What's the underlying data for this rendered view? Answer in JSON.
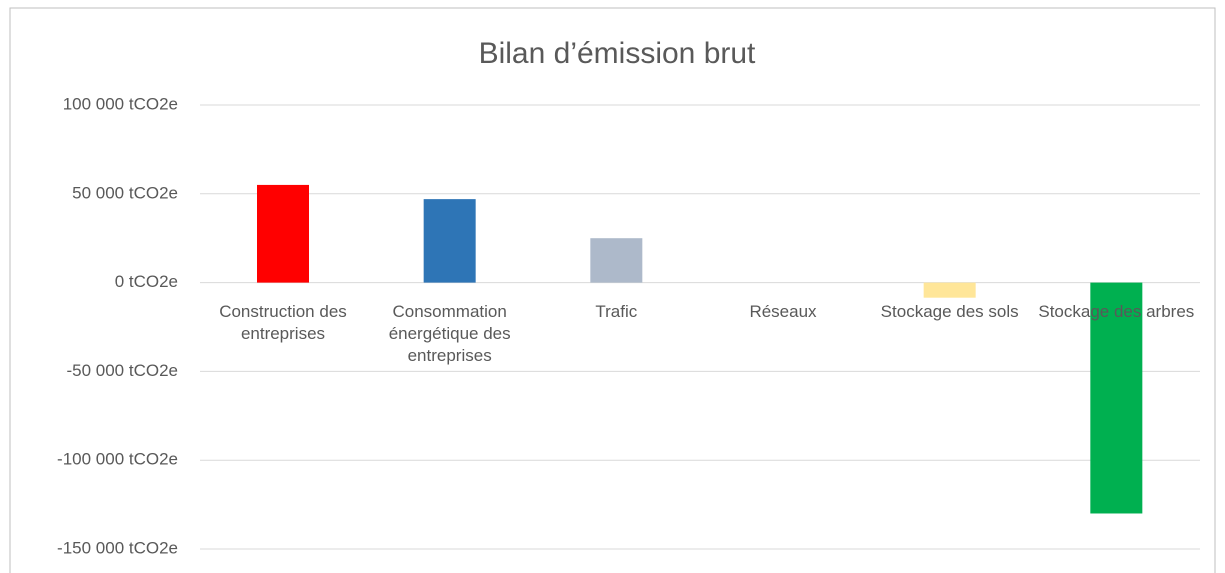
{
  "chart_data": {
    "type": "bar",
    "title": "Bilan d’émission  brut",
    "categories": [
      "Construction des entreprises",
      "Consommation énergétique des entreprises",
      "Trafic",
      "Réseaux",
      "Stockage des sols",
      "Stockage des arbres"
    ],
    "values": [
      55000,
      47000,
      25000,
      0,
      -8500,
      -130000
    ],
    "colors": [
      "#ff0000",
      "#2e75b6",
      "#adb9ca",
      "#a5a5a5",
      "#ffe699",
      "#00b050"
    ],
    "ylim": [
      -150000,
      100000
    ],
    "yticks": [
      {
        "value": -150000,
        "label": "-150 000 tCO2e"
      },
      {
        "value": -100000,
        "label": "-100 000 tCO2e"
      },
      {
        "value": -50000,
        "label": "-50 000 tCO2e"
      },
      {
        "value": 0,
        "label": "0 tCO2e"
      },
      {
        "value": 50000,
        "label": "50 000 tCO2e"
      },
      {
        "value": 100000,
        "label": "100 000 tCO2e"
      }
    ],
    "grid": true
  }
}
